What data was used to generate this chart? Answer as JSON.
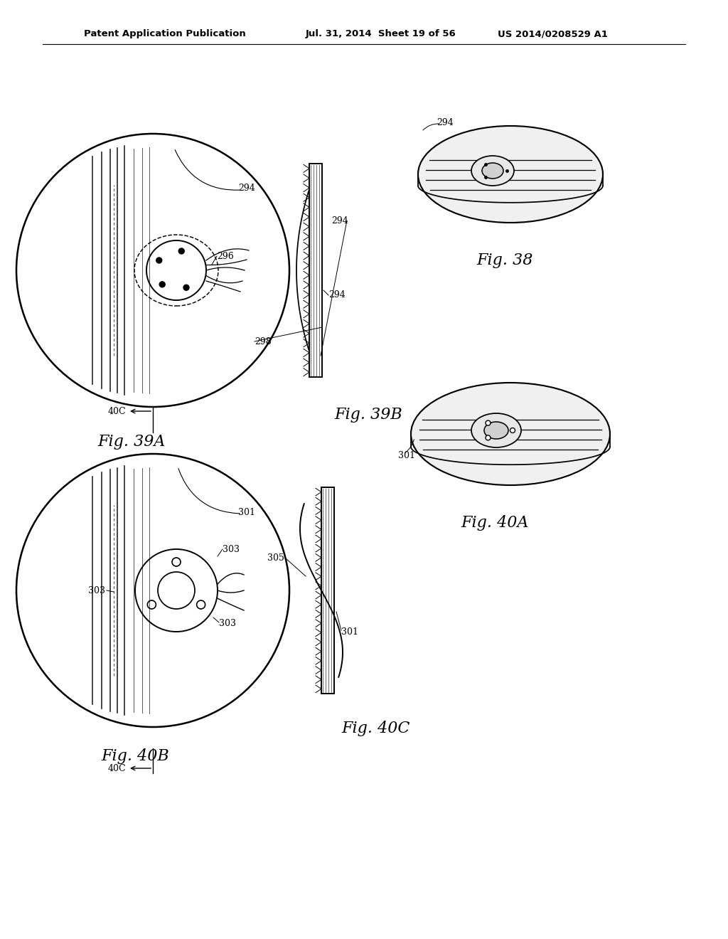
{
  "bg_color": "#ffffff",
  "header_text": "Patent Application Publication     Jul. 31, 2014  Sheet 19 of 56     US 2014/0208529 A1",
  "line_color": "#000000",
  "lw": 1.4,
  "fig38_label": "Fig. 38",
  "fig39A_label": "Fig. 39A",
  "fig39B_label": "Fig. 39B",
  "fig40A_label": "Fig. 40A",
  "fig40B_label": "Fig. 40B",
  "fig40C_label": "Fig. 40C"
}
